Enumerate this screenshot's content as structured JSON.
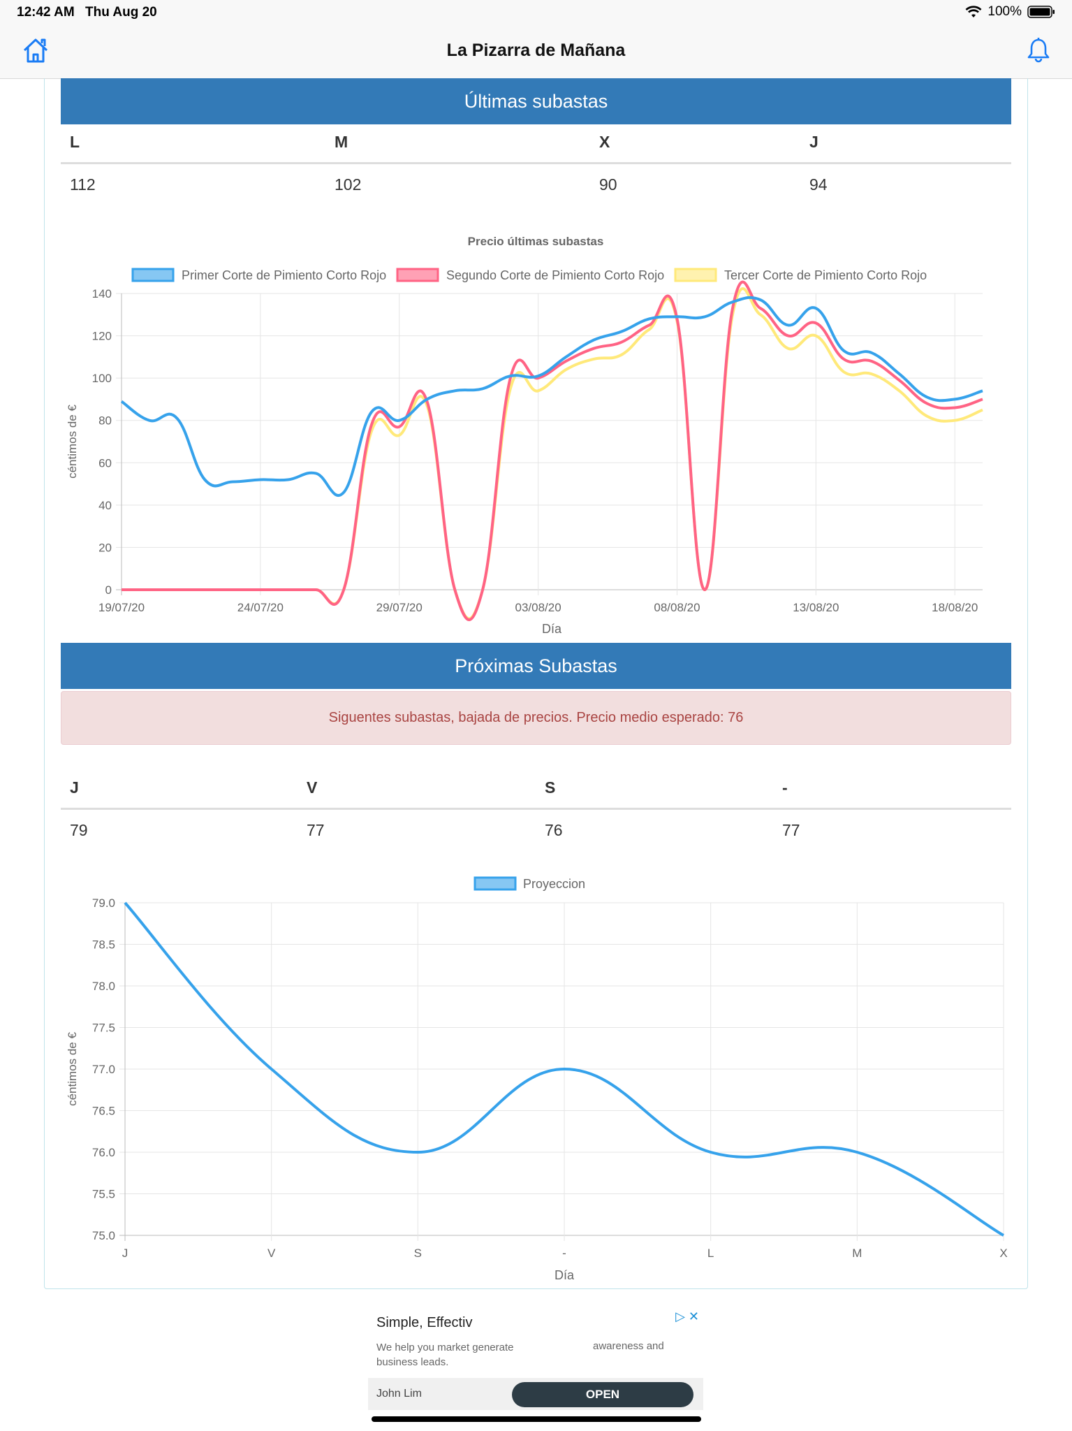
{
  "status": {
    "time": "12:42 AM",
    "date": "Thu Aug 20",
    "battery": "100%"
  },
  "nav": {
    "title": "La Pizarra de Mañana"
  },
  "last": {
    "title": "Últimas subastas",
    "headers": [
      "L",
      "M",
      "X",
      "J"
    ],
    "values": [
      "112",
      "102",
      "90",
      "94"
    ]
  },
  "next": {
    "title": "Próximas Subastas",
    "alert": "Siguentes subastas, bajada de precios. Precio medio esperado: 76",
    "headers": [
      "J",
      "V",
      "S",
      "-"
    ],
    "values": [
      "79",
      "77",
      "76",
      "77"
    ]
  },
  "chart_data": [
    {
      "type": "line",
      "title": "Precio últimas subastas",
      "xlabel": "Día",
      "ylabel": "céntimos de €",
      "ylim": [
        0,
        140
      ],
      "yticks": [
        "0",
        "20",
        "40",
        "60",
        "80",
        "100",
        "120",
        "140"
      ],
      "xticks": [
        "19/07/20",
        "24/07/20",
        "29/07/20",
        "03/08/20",
        "08/08/20",
        "13/08/20",
        "18/08/20"
      ],
      "legend_position": "top",
      "x": [
        "19/07",
        "20/07",
        "21/07",
        "22/07",
        "23/07",
        "24/07",
        "25/07",
        "26/07",
        "27/07",
        "28/07",
        "29/07",
        "30/07",
        "31/07",
        "01/08",
        "02/08",
        "03/08",
        "04/08",
        "05/08",
        "06/08",
        "07/08",
        "08/08",
        "09/08",
        "10/08",
        "11/08",
        "12/08",
        "13/08",
        "14/08",
        "15/08",
        "16/08",
        "17/08",
        "18/08",
        "19/08"
      ],
      "series": [
        {
          "name": "Primer Corte de Pimiento Corto Rojo",
          "color": "#36a2eb",
          "values": [
            89,
            80,
            81,
            52,
            51,
            52,
            52,
            55,
            46,
            84,
            80,
            90,
            94,
            95,
            101,
            101,
            110,
            118,
            122,
            128,
            129,
            129,
            136,
            137,
            125,
            133,
            113,
            112,
            102,
            91,
            90,
            94
          ]
        },
        {
          "name": "Segundo Corte de Pimiento Corto Rojo",
          "color": "#ff6384",
          "values": [
            0,
            0,
            0,
            0,
            0,
            0,
            0,
            0,
            0,
            78,
            77,
            89,
            0,
            0,
            100,
            100,
            108,
            114,
            117,
            125,
            128,
            0,
            133,
            133,
            120,
            126,
            109,
            108,
            99,
            88,
            86,
            90
          ]
        },
        {
          "name": "Tercer Corte de Pimiento Corto Rojo",
          "color": "#ffe97a",
          "values": [
            0,
            0,
            0,
            0,
            0,
            0,
            0,
            0,
            0,
            75,
            73,
            87,
            0,
            0,
            95,
            94,
            104,
            109,
            111,
            123,
            127,
            0,
            130,
            130,
            114,
            120,
            103,
            102,
            94,
            82,
            80,
            85
          ]
        }
      ]
    },
    {
      "type": "line",
      "title": "",
      "xlabel": "Día",
      "ylabel": "céntimos de €",
      "ylim": [
        75,
        79
      ],
      "yticks": [
        "75.0",
        "75.5",
        "76.0",
        "76.5",
        "77.0",
        "77.5",
        "78.0",
        "78.5",
        "79.0"
      ],
      "categories": [
        "J",
        "V",
        "S",
        "-",
        "L",
        "M",
        "X"
      ],
      "legend_position": "top",
      "series": [
        {
          "name": "Proyeccion",
          "color": "#36a2eb",
          "values": [
            79,
            77,
            76,
            77,
            76,
            76,
            75
          ]
        }
      ]
    }
  ],
  "ad": {
    "headline": "Simple, Effectiv",
    "desc1": "We help you market generate business leads.",
    "desc2": "awareness and",
    "advertiser": "John Lim",
    "cta": "OPEN"
  }
}
